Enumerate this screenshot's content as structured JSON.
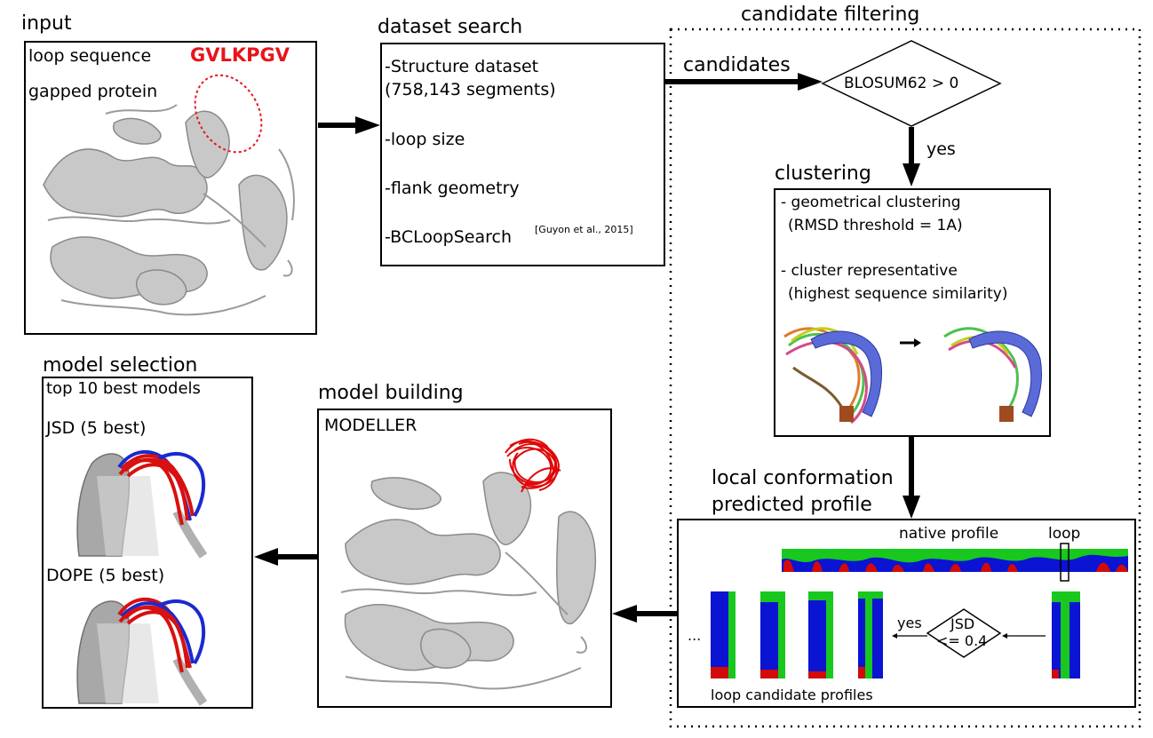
{
  "input": {
    "section_title": "input",
    "loop_sequence_label": "loop sequence",
    "loop_sequence": "GVLKPGV",
    "gapped_protein_label": "gapped protein"
  },
  "dataset_search": {
    "section_title": "dataset search",
    "line1": "-Structure dataset",
    "line2": "(758,143 segments)",
    "loop_size": "-loop size",
    "flank_geometry": "-flank geometry",
    "bcloopsearch": "-BCLoopSearch",
    "citation": "[Guyon et al., 2015]"
  },
  "candidate_filtering": {
    "section_title": "candidate filtering",
    "candidates_label": "candidates",
    "decision": "BLOSUM62 > 0",
    "yes_label": "yes"
  },
  "clustering": {
    "section_title": "clustering",
    "line1": "- geometrical clustering",
    "line2": "(RMSD threshold = 1A)",
    "line3": "- cluster representative",
    "line4": "(highest sequence similarity)"
  },
  "local_conformation": {
    "title_line1": "local conformation",
    "title_line2": "predicted profile",
    "native_profile": "native profile",
    "loop_label": "loop",
    "jsd_line1": "JSD",
    "jsd_line2": "<= 0.4",
    "yes_label": "yes",
    "ellipsis": "...",
    "candidate_profiles": "loop candidate profiles"
  },
  "model_building": {
    "section_title": "model building",
    "tool": "MODELLER"
  },
  "model_selection": {
    "section_title": "model selection",
    "top_label": "top 10 best models",
    "jsd_label": "JSD (5 best)",
    "dope_label": "DOPE (5 best)"
  },
  "colors": {
    "highlight": "#e8141c",
    "profile_blue": "#0a14d2",
    "profile_green": "#18c81e",
    "profile_red": "#d20a0a",
    "protein_gray": "#c8c8c8"
  }
}
